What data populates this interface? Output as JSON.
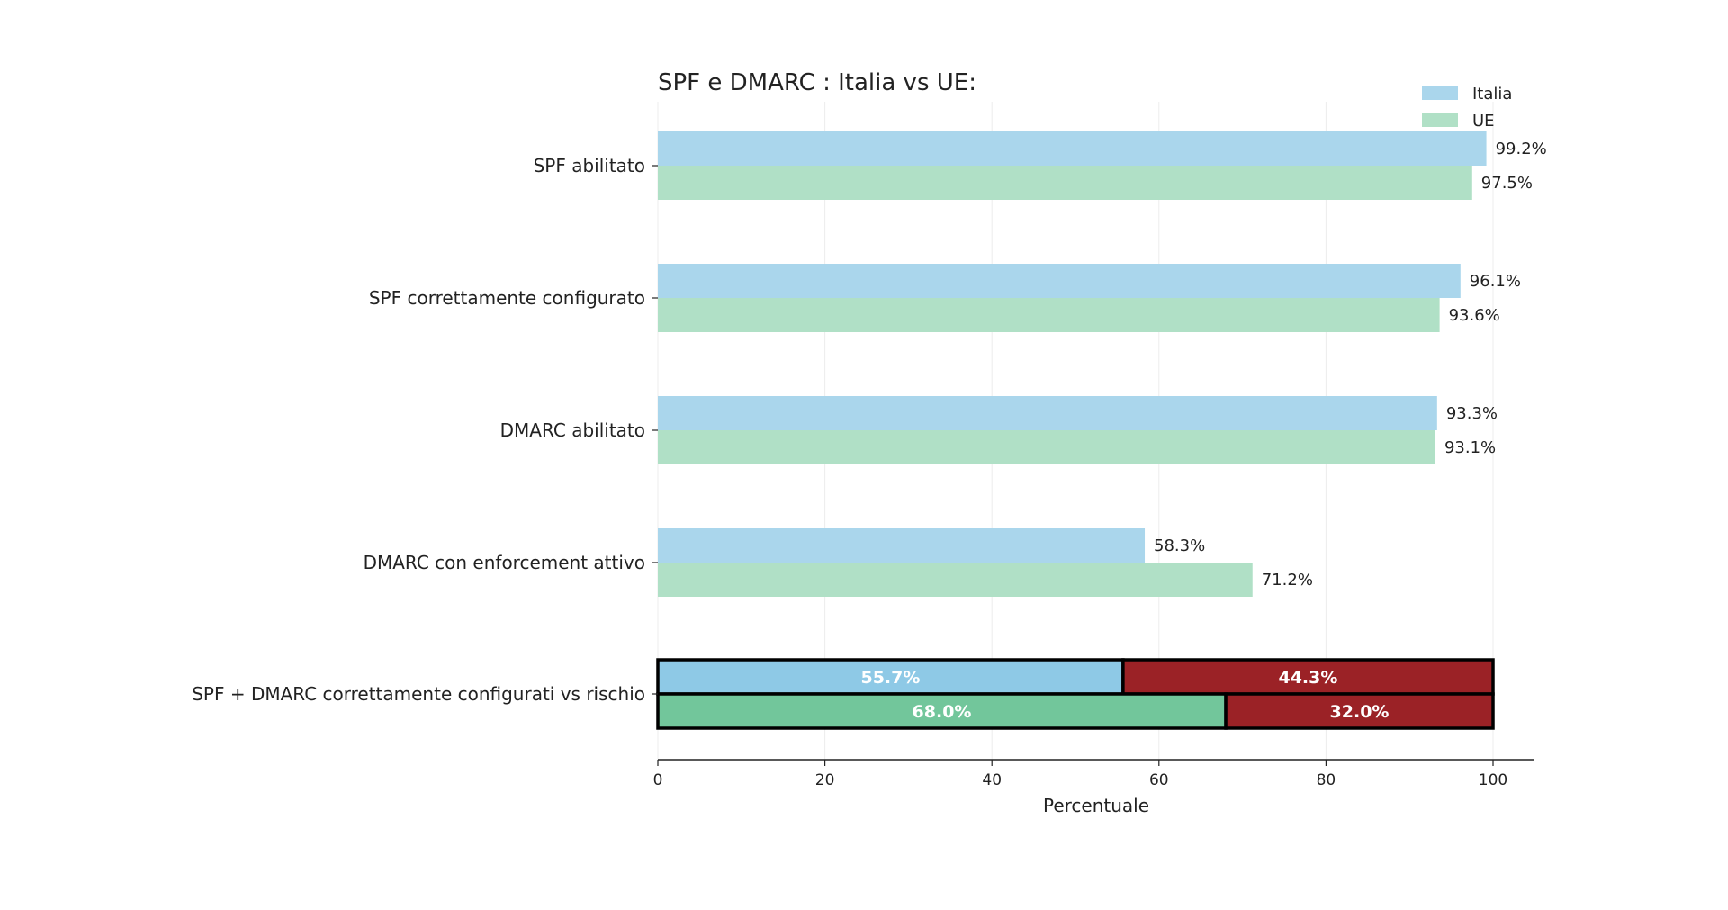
{
  "chart_data": {
    "type": "bar",
    "orientation": "horizontal",
    "title": "SPF e DMARC : Italia vs UE:",
    "xlabel": "Percentuale",
    "ylabel": "",
    "xlim": [
      0,
      105
    ],
    "xticks": [
      0,
      20,
      40,
      60,
      80,
      100
    ],
    "grid": "vertical",
    "legend_position": "top-right",
    "categories": [
      "SPF abilitato",
      "SPF correttamente configurato",
      "DMARC abilitato",
      "DMARC con enforcement attivo"
    ],
    "series": [
      {
        "name": "Italia",
        "color": "#aad6ec",
        "values": [
          99.2,
          96.1,
          93.3,
          58.3
        ],
        "labels": [
          "99.2%",
          "96.1%",
          "93.3%",
          "58.3%"
        ]
      },
      {
        "name": "UE",
        "color": "#b0e0c6",
        "values": [
          97.5,
          93.6,
          93.1,
          71.2
        ],
        "labels": [
          "97.5%",
          "93.6%",
          "93.1%",
          "71.2%"
        ]
      }
    ],
    "stacked_category": {
      "label": "SPF + DMARC correttamente configurati vs rischio",
      "rows": [
        {
          "series": "Italia",
          "ok": 55.7,
          "risk": 44.3,
          "ok_label": "55.7%",
          "risk_label": "44.3%",
          "ok_color": "#8ec9e6"
        },
        {
          "series": "UE",
          "ok": 68.0,
          "risk": 32.0,
          "ok_label": "68.0%",
          "risk_label": "32.0%",
          "ok_color": "#72c69b"
        }
      ],
      "risk_color": "#9b2226"
    }
  }
}
